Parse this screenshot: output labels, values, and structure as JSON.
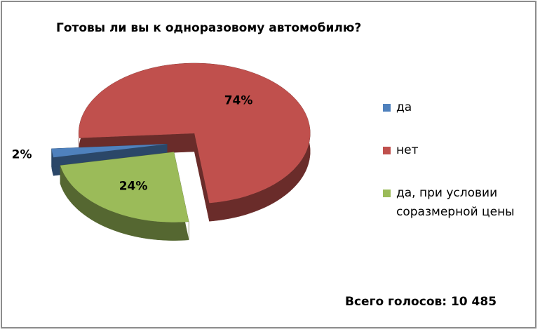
{
  "chart_data": {
    "type": "pie3d",
    "title": "Готовы ли вы к одноразовому автомобилю?",
    "categories": [
      "да",
      "нет",
      "да, при условии соразмерной цены"
    ],
    "values": [
      2,
      74,
      24
    ],
    "value_labels": [
      "2%",
      "74%",
      "24%"
    ],
    "colors": [
      "#4f81bd",
      "#c0504d",
      "#9bbb59"
    ],
    "legend": "right",
    "annotation": "Всего голосов: 10 485"
  }
}
